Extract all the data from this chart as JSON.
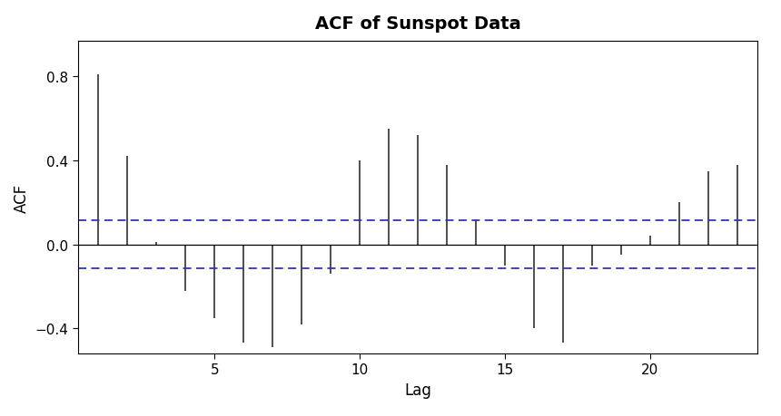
{
  "title": "ACF of Sunspot Data",
  "xlabel": "Lag",
  "ylabel": "ACF",
  "lags": [
    1,
    2,
    3,
    4,
    5,
    6,
    7,
    8,
    9,
    10,
    11,
    12,
    13,
    14,
    15,
    16,
    17,
    18,
    19,
    20,
    21,
    22,
    23
  ],
  "acf_values": [
    0.81,
    0.42,
    0.01,
    -0.22,
    -0.35,
    -0.47,
    -0.49,
    -0.38,
    -0.14,
    0.4,
    0.55,
    0.52,
    0.38,
    0.12,
    -0.1,
    -0.4,
    -0.47,
    -0.1,
    -0.05,
    0.04,
    0.2,
    0.35,
    0.38
  ],
  "confidence_interval": 0.115,
  "ylim": [
    -0.52,
    0.97
  ],
  "yticks": [
    -0.4,
    0.0,
    0.4,
    0.8
  ],
  "xlim": [
    0.3,
    23.7
  ],
  "xticks": [
    5,
    10,
    15,
    20
  ],
  "bar_color": "#404040",
  "ci_color": "#3333bb",
  "bg_color": "#ffffff",
  "title_fontsize": 14,
  "label_fontsize": 12,
  "tick_fontsize": 11
}
